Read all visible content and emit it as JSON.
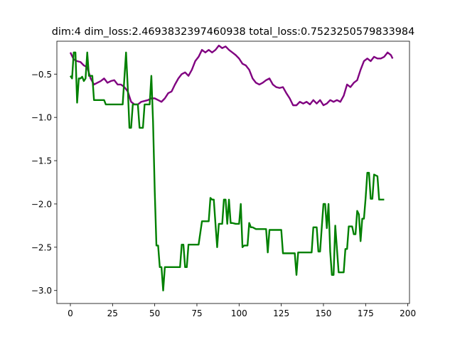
{
  "chart_data": {
    "type": "line",
    "title": "dim:4 dim_loss:2.4693832397460938 total_loss:0.7523250579833984",
    "xlabel": "",
    "ylabel": "",
    "xlim": [
      -8,
      201
    ],
    "ylim": [
      -3.15,
      -0.12
    ],
    "x_ticks": [
      0,
      25,
      50,
      75,
      100,
      125,
      150,
      175,
      200
    ],
    "y_ticks": [
      -3.0,
      -2.5,
      -2.0,
      -1.5,
      -1.0,
      -0.5
    ],
    "grid": false,
    "series": [
      {
        "color": "#800080",
        "points": [
          [
            0,
            -0.25
          ],
          [
            2,
            -0.33
          ],
          [
            4,
            -0.35
          ],
          [
            6,
            -0.36
          ],
          [
            8,
            -0.4
          ],
          [
            10,
            -0.42
          ],
          [
            12,
            -0.55
          ],
          [
            14,
            -0.62
          ],
          [
            16,
            -0.6
          ],
          [
            18,
            -0.58
          ],
          [
            20,
            -0.55
          ],
          [
            22,
            -0.6
          ],
          [
            24,
            -0.58
          ],
          [
            26,
            -0.57
          ],
          [
            28,
            -0.62
          ],
          [
            30,
            -0.62
          ],
          [
            32,
            -0.65
          ],
          [
            34,
            -0.7
          ],
          [
            36,
            -0.82
          ],
          [
            38,
            -0.85
          ],
          [
            40,
            -0.85
          ],
          [
            42,
            -0.82
          ],
          [
            44,
            -0.81
          ],
          [
            46,
            -0.8
          ],
          [
            48,
            -0.78
          ],
          [
            50,
            -0.78
          ],
          [
            52,
            -0.8
          ],
          [
            54,
            -0.82
          ],
          [
            56,
            -0.78
          ],
          [
            58,
            -0.72
          ],
          [
            60,
            -0.7
          ],
          [
            62,
            -0.62
          ],
          [
            64,
            -0.55
          ],
          [
            66,
            -0.5
          ],
          [
            68,
            -0.48
          ],
          [
            70,
            -0.52
          ],
          [
            72,
            -0.45
          ],
          [
            74,
            -0.35
          ],
          [
            76,
            -0.3
          ],
          [
            78,
            -0.22
          ],
          [
            80,
            -0.25
          ],
          [
            82,
            -0.22
          ],
          [
            84,
            -0.25
          ],
          [
            86,
            -0.22
          ],
          [
            88,
            -0.17
          ],
          [
            90,
            -0.2
          ],
          [
            92,
            -0.18
          ],
          [
            94,
            -0.22
          ],
          [
            96,
            -0.25
          ],
          [
            98,
            -0.28
          ],
          [
            100,
            -0.32
          ],
          [
            102,
            -0.38
          ],
          [
            104,
            -0.4
          ],
          [
            106,
            -0.45
          ],
          [
            108,
            -0.55
          ],
          [
            110,
            -0.6
          ],
          [
            112,
            -0.62
          ],
          [
            114,
            -0.6
          ],
          [
            116,
            -0.57
          ],
          [
            118,
            -0.55
          ],
          [
            120,
            -0.62
          ],
          [
            122,
            -0.65
          ],
          [
            124,
            -0.66
          ],
          [
            126,
            -0.65
          ],
          [
            128,
            -0.72
          ],
          [
            130,
            -0.78
          ],
          [
            132,
            -0.86
          ],
          [
            134,
            -0.86
          ],
          [
            136,
            -0.82
          ],
          [
            138,
            -0.84
          ],
          [
            140,
            -0.82
          ],
          [
            142,
            -0.85
          ],
          [
            144,
            -0.8
          ],
          [
            146,
            -0.84
          ],
          [
            148,
            -0.8
          ],
          [
            150,
            -0.86
          ],
          [
            152,
            -0.84
          ],
          [
            154,
            -0.8
          ],
          [
            156,
            -0.82
          ],
          [
            158,
            -0.8
          ],
          [
            160,
            -0.82
          ],
          [
            162,
            -0.75
          ],
          [
            164,
            -0.62
          ],
          [
            166,
            -0.65
          ],
          [
            168,
            -0.6
          ],
          [
            170,
            -0.57
          ],
          [
            172,
            -0.45
          ],
          [
            174,
            -0.35
          ],
          [
            176,
            -0.32
          ],
          [
            178,
            -0.35
          ],
          [
            180,
            -0.3
          ],
          [
            182,
            -0.32
          ],
          [
            184,
            -0.32
          ],
          [
            186,
            -0.3
          ],
          [
            188,
            -0.25
          ],
          [
            190,
            -0.28
          ],
          [
            191,
            -0.32
          ]
        ]
      },
      {
        "color": "#008000",
        "points": [
          [
            0,
            -0.52
          ],
          [
            1,
            -0.55
          ],
          [
            2,
            -0.25
          ],
          [
            3,
            -0.25
          ],
          [
            4,
            -0.83
          ],
          [
            5,
            -0.55
          ],
          [
            6,
            -0.55
          ],
          [
            7,
            -0.53
          ],
          [
            8,
            -0.58
          ],
          [
            9,
            -0.55
          ],
          [
            10,
            -0.25
          ],
          [
            11,
            -0.52
          ],
          [
            12,
            -0.52
          ],
          [
            13,
            -0.52
          ],
          [
            14,
            -0.8
          ],
          [
            15,
            -0.8
          ],
          [
            16,
            -0.8
          ],
          [
            17,
            -0.8
          ],
          [
            18,
            -0.8
          ],
          [
            19,
            -0.8
          ],
          [
            20,
            -0.8
          ],
          [
            21,
            -0.85
          ],
          [
            22,
            -0.85
          ],
          [
            25,
            -0.85
          ],
          [
            28,
            -0.85
          ],
          [
            31,
            -0.85
          ],
          [
            32,
            -0.55
          ],
          [
            33,
            -0.25
          ],
          [
            34,
            -0.65
          ],
          [
            35,
            -1.12
          ],
          [
            36,
            -1.12
          ],
          [
            37,
            -0.85
          ],
          [
            38,
            -0.85
          ],
          [
            39,
            -0.85
          ],
          [
            40,
            -0.85
          ],
          [
            41,
            -1.12
          ],
          [
            42,
            -1.12
          ],
          [
            43,
            -1.12
          ],
          [
            44,
            -0.85
          ],
          [
            45,
            -0.85
          ],
          [
            46,
            -0.85
          ],
          [
            47,
            -0.85
          ],
          [
            48,
            -0.52
          ],
          [
            49,
            -1.05
          ],
          [
            50,
            -1.85
          ],
          [
            51,
            -2.48
          ],
          [
            52,
            -2.48
          ],
          [
            53,
            -2.73
          ],
          [
            54,
            -2.73
          ],
          [
            55,
            -3.0
          ],
          [
            56,
            -2.73
          ],
          [
            58,
            -2.73
          ],
          [
            60,
            -2.73
          ],
          [
            62,
            -2.73
          ],
          [
            64,
            -2.73
          ],
          [
            65,
            -2.73
          ],
          [
            66,
            -2.47
          ],
          [
            67,
            -2.47
          ],
          [
            68,
            -2.73
          ],
          [
            69,
            -2.73
          ],
          [
            70,
            -2.47
          ],
          [
            72,
            -2.47
          ],
          [
            74,
            -2.47
          ],
          [
            76,
            -2.47
          ],
          [
            78,
            -2.2
          ],
          [
            80,
            -2.2
          ],
          [
            82,
            -2.2
          ],
          [
            83,
            -1.93
          ],
          [
            84,
            -1.95
          ],
          [
            85,
            -1.95
          ],
          [
            86,
            -2.23
          ],
          [
            87,
            -2.5
          ],
          [
            88,
            -2.23
          ],
          [
            89,
            -2.23
          ],
          [
            90,
            -2.23
          ],
          [
            91,
            -1.95
          ],
          [
            92,
            -1.95
          ],
          [
            93,
            -2.23
          ],
          [
            94,
            -1.95
          ],
          [
            95,
            -2.22
          ],
          [
            96,
            -2.22
          ],
          [
            98,
            -2.23
          ],
          [
            100,
            -2.23
          ],
          [
            101,
            -2.0
          ],
          [
            102,
            -2.5
          ],
          [
            103,
            -2.48
          ],
          [
            105,
            -2.48
          ],
          [
            106,
            -2.22
          ],
          [
            107,
            -2.27
          ],
          [
            108,
            -2.27
          ],
          [
            110,
            -2.29
          ],
          [
            112,
            -2.29
          ],
          [
            114,
            -2.29
          ],
          [
            116,
            -2.29
          ],
          [
            117,
            -2.56
          ],
          [
            118,
            -2.3
          ],
          [
            120,
            -2.3
          ],
          [
            122,
            -2.3
          ],
          [
            124,
            -2.3
          ],
          [
            125,
            -2.3
          ],
          [
            126,
            -2.57
          ],
          [
            128,
            -2.57
          ],
          [
            130,
            -2.57
          ],
          [
            132,
            -2.57
          ],
          [
            133,
            -2.57
          ],
          [
            134,
            -2.82
          ],
          [
            135,
            -2.56
          ],
          [
            137,
            -2.56
          ],
          [
            139,
            -2.56
          ],
          [
            141,
            -2.56
          ],
          [
            143,
            -2.56
          ],
          [
            144,
            -2.27
          ],
          [
            145,
            -2.27
          ],
          [
            146,
            -2.27
          ],
          [
            147,
            -2.55
          ],
          [
            148,
            -2.55
          ],
          [
            149,
            -2.27
          ],
          [
            150,
            -2.0
          ],
          [
            151,
            -2.0
          ],
          [
            152,
            -2.28
          ],
          [
            153,
            -2.0
          ],
          [
            154,
            -2.55
          ],
          [
            155,
            -2.82
          ],
          [
            156,
            -2.82
          ],
          [
            157,
            -2.25
          ],
          [
            158,
            -2.52
          ],
          [
            159,
            -2.79
          ],
          [
            160,
            -2.79
          ],
          [
            161,
            -2.79
          ],
          [
            162,
            -2.79
          ],
          [
            163,
            -2.52
          ],
          [
            164,
            -2.52
          ],
          [
            165,
            -2.26
          ],
          [
            166,
            -2.26
          ],
          [
            167,
            -2.26
          ],
          [
            168,
            -2.35
          ],
          [
            169,
            -2.35
          ],
          [
            170,
            -2.08
          ],
          [
            171,
            -2.12
          ],
          [
            172,
            -2.43
          ],
          [
            173,
            -2.17
          ],
          [
            174,
            -2.17
          ],
          [
            175,
            -1.93
          ],
          [
            176,
            -1.64
          ],
          [
            177,
            -1.64
          ],
          [
            178,
            -1.94
          ],
          [
            179,
            -1.94
          ],
          [
            180,
            -1.66
          ],
          [
            181,
            -1.67
          ],
          [
            182,
            -1.68
          ],
          [
            183,
            -1.95
          ],
          [
            184,
            -1.95
          ],
          [
            185,
            -1.95
          ],
          [
            186,
            -1.95
          ]
        ]
      }
    ]
  }
}
